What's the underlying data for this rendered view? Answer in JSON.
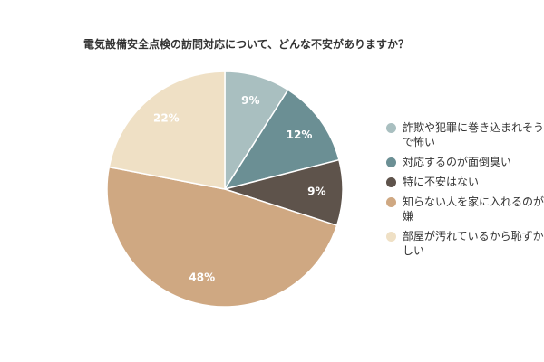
{
  "chart_data": {
    "type": "pie",
    "title": "電気設備安全点検の訪問対応について、どんな不安がありますか？",
    "slices": [
      {
        "label": "詐欺や犯罪に巻き込まれそうで怖い",
        "value": 9,
        "display": "9%",
        "color": "#a9bfc0"
      },
      {
        "label": "対応するのが面倒臭い",
        "value": 12,
        "display": "12%",
        "color": "#6b8f94"
      },
      {
        "label": "特に不安はない",
        "value": 9,
        "display": "9%",
        "color": "#5e534b"
      },
      {
        "label": "知らない人を家に入れるのが嫌",
        "value": 48,
        "display": "48%",
        "color": "#cfa882"
      },
      {
        "label": "部屋が汚れているから恥ずかしい",
        "value": 22,
        "display": "22%",
        "color": "#efe0c5"
      }
    ],
    "legend_position": "right"
  }
}
